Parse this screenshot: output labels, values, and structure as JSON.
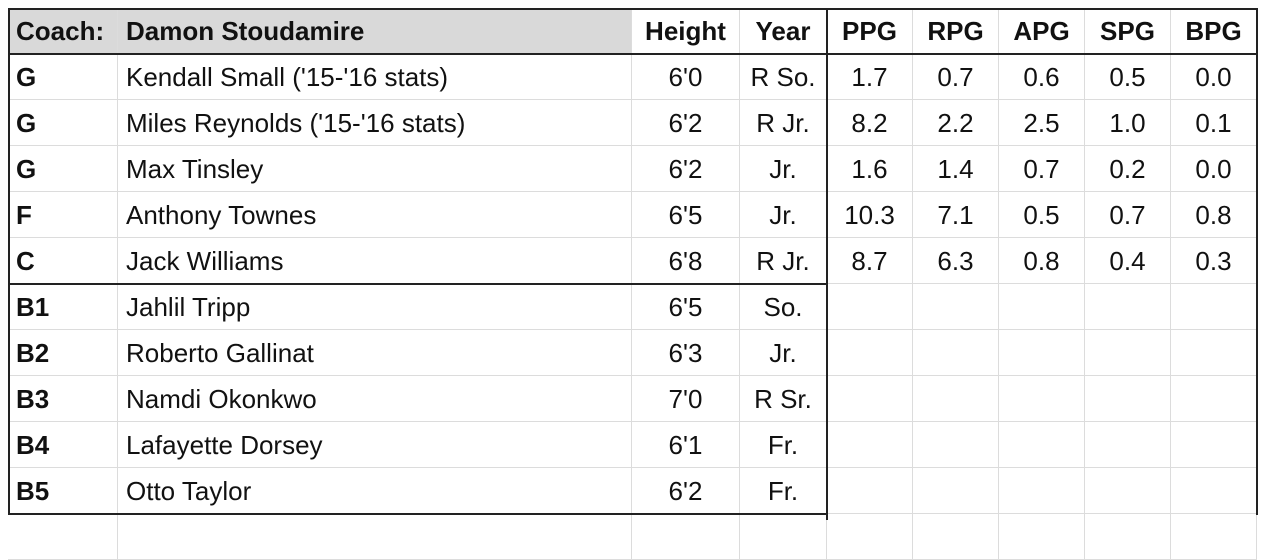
{
  "header": {
    "coach_label": "Coach:",
    "coach_name": "Damon Stoudamire",
    "columns": [
      "Height",
      "Year",
      "PPG",
      "RPG",
      "APG",
      "SPG",
      "BPG"
    ]
  },
  "rows": [
    [
      "G",
      "Kendall Small ('15-'16 stats)",
      "6'0",
      "R So.",
      "1.7",
      "0.7",
      "0.6",
      "0.5",
      "0.0"
    ],
    [
      "G",
      "Miles Reynolds ('15-'16 stats)",
      "6'2",
      "R Jr.",
      "8.2",
      "2.2",
      "2.5",
      "1.0",
      "0.1"
    ],
    [
      "G",
      "Max Tinsley",
      "6'2",
      "Jr.",
      "1.6",
      "1.4",
      "0.7",
      "0.2",
      "0.0"
    ],
    [
      "F",
      "Anthony Townes",
      "6'5",
      "Jr.",
      "10.3",
      "7.1",
      "0.5",
      "0.7",
      "0.8"
    ],
    [
      "C",
      "Jack Williams",
      "6'8",
      "R Jr.",
      "8.7",
      "6.3",
      "0.8",
      "0.4",
      "0.3"
    ],
    [
      "B1",
      "Jahlil Tripp",
      "6'5",
      "So."
    ],
    [
      "B2",
      "Roberto Gallinat",
      "6'3",
      "Jr."
    ],
    [
      "B3",
      "Namdi Okonkwo",
      "7'0",
      "R Sr."
    ],
    [
      "B4",
      "Lafayette Dorsey",
      "6'1",
      "Fr."
    ],
    [
      "B5",
      "Otto Taylor",
      "6'2",
      "Fr."
    ]
  ]
}
